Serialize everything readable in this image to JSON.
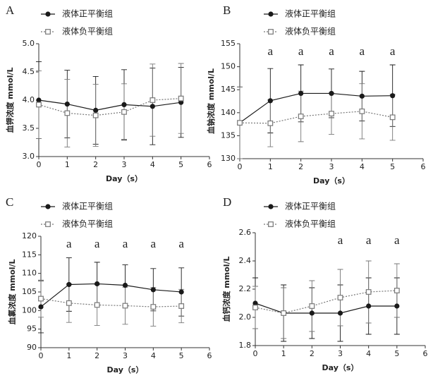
{
  "chart_data": [
    {
      "type": "line",
      "panel": "A",
      "y_label": "血钾浓度 mmol/L",
      "x_label": "Day（s）",
      "x": [
        0,
        1,
        2,
        3,
        4,
        5
      ],
      "xlim": [
        0,
        6
      ],
      "xticks": [
        0,
        1,
        2,
        3,
        4,
        5,
        6
      ],
      "ylim": [
        3,
        5
      ],
      "yticks": [
        {
          "value": 3,
          "label": "3.0"
        },
        3.5,
        {
          "value": 4,
          "label": "4.0"
        },
        4.5,
        {
          "value": 5,
          "label": "5.0"
        }
      ],
      "series": [
        {
          "name": "液体正平衡组",
          "color": "#1a1a1a",
          "marker": "circle",
          "linestyle": "solid",
          "values": [
            4.0,
            3.93,
            3.82,
            3.92,
            3.89,
            3.96
          ],
          "errors": [
            0.68,
            0.6,
            0.6,
            0.62,
            0.68,
            0.62
          ]
        },
        {
          "name": "液体负平衡组",
          "color": "#777777",
          "marker": "square",
          "linestyle": "dotted",
          "values": [
            3.92,
            3.77,
            3.73,
            3.79,
            4.0,
            4.03
          ],
          "errors": [
            0.6,
            0.6,
            0.55,
            0.5,
            0.64,
            0.62
          ]
        }
      ],
      "annotations": []
    },
    {
      "type": "line",
      "panel": "B",
      "y_label": "血钠浓度 mmol/L",
      "x_label": "Day（s）",
      "x": [
        0,
        1,
        2,
        3,
        4,
        5
      ],
      "xlim": [
        0,
        6
      ],
      "xticks": [
        0,
        1,
        2,
        3,
        4,
        5,
        6
      ],
      "ylim": [
        130,
        155
      ],
      "yticks": [
        130,
        135,
        140,
        145,
        150,
        155
      ],
      "series": [
        {
          "name": "液体正平衡组",
          "color": "#1a1a1a",
          "marker": "circle",
          "linestyle": "solid",
          "values": [
            137.8,
            142.6,
            144.2,
            144.2,
            143.6,
            143.7
          ],
          "errors": [
            7.8,
            7.0,
            6.2,
            5.3,
            5.4,
            6.7
          ]
        },
        {
          "name": "液体负平衡组",
          "color": "#777777",
          "marker": "square",
          "linestyle": "dotted",
          "values": [
            137.8,
            137.7,
            139.2,
            139.8,
            140.3,
            139.0
          ],
          "errors": [
            7.8,
            5.1,
            5.5,
            4.5,
            6.0,
            5.0
          ]
        }
      ],
      "annotations": [
        {
          "x": 1,
          "text": "a"
        },
        {
          "x": 2,
          "text": "a"
        },
        {
          "x": 3,
          "text": "a"
        },
        {
          "x": 4,
          "text": "a"
        },
        {
          "x": 5,
          "text": "a"
        }
      ]
    },
    {
      "type": "line",
      "panel": "C",
      "y_label": "血氯浓度 mmol/L",
      "x_label": "Day（s）",
      "x": [
        0,
        1,
        2,
        3,
        4,
        5
      ],
      "xlim": [
        0,
        6
      ],
      "xticks": [
        0,
        1,
        2,
        3,
        4,
        5,
        6
      ],
      "ylim": [
        90,
        120
      ],
      "yticks": [
        90,
        95,
        100,
        105,
        110,
        115,
        120
      ],
      "series": [
        {
          "name": "液体正平衡组",
          "color": "#1a1a1a",
          "marker": "circle",
          "linestyle": "solid",
          "values": [
            101.0,
            107.0,
            107.2,
            106.8,
            105.6,
            105.0
          ],
          "errors": [
            7.0,
            7.2,
            5.8,
            5.5,
            5.7,
            6.5
          ]
        },
        {
          "name": "液体负平衡组",
          "color": "#777777",
          "marker": "square",
          "linestyle": "dotted",
          "values": [
            103.2,
            102.0,
            101.5,
            101.3,
            101.0,
            101.2
          ],
          "errors": [
            5.0,
            5.2,
            5.5,
            5.0,
            5.2,
            4.5
          ]
        }
      ],
      "annotations": [
        {
          "x": 1,
          "text": "a"
        },
        {
          "x": 2,
          "text": "a"
        },
        {
          "x": 3,
          "text": "a"
        },
        {
          "x": 4,
          "text": "a"
        },
        {
          "x": 5,
          "text": "a"
        }
      ]
    },
    {
      "type": "line",
      "panel": "D",
      "y_label": "血钙浓度 mmol/L",
      "x_label": "Day（s）",
      "x": [
        0,
        1,
        2,
        3,
        4,
        5
      ],
      "xlim": [
        0,
        6
      ],
      "xticks": [
        0,
        1,
        2,
        3,
        4,
        5,
        6
      ],
      "ylim": [
        1.8,
        2.6
      ],
      "yticks": [
        1.8,
        {
          "value": 2,
          "label": "2.0"
        },
        2.2,
        2.4,
        2.6
      ],
      "series": [
        {
          "name": "液体正平衡组",
          "color": "#1a1a1a",
          "marker": "circle",
          "linestyle": "solid",
          "values": [
            2.1,
            2.03,
            2.03,
            2.03,
            2.08,
            2.08
          ],
          "errors": [
            0.18,
            0.2,
            0.18,
            0.2,
            0.2,
            0.2
          ]
        },
        {
          "name": "液体负平衡组",
          "color": "#777777",
          "marker": "square",
          "linestyle": "dotted",
          "values": [
            2.07,
            2.03,
            2.08,
            2.14,
            2.18,
            2.19
          ],
          "errors": [
            0.15,
            0.18,
            0.18,
            0.2,
            0.22,
            0.19
          ]
        }
      ],
      "annotations": [
        {
          "x": 3,
          "text": "a"
        },
        {
          "x": 4,
          "text": "a"
        },
        {
          "x": 5,
          "text": "a"
        }
      ]
    }
  ]
}
